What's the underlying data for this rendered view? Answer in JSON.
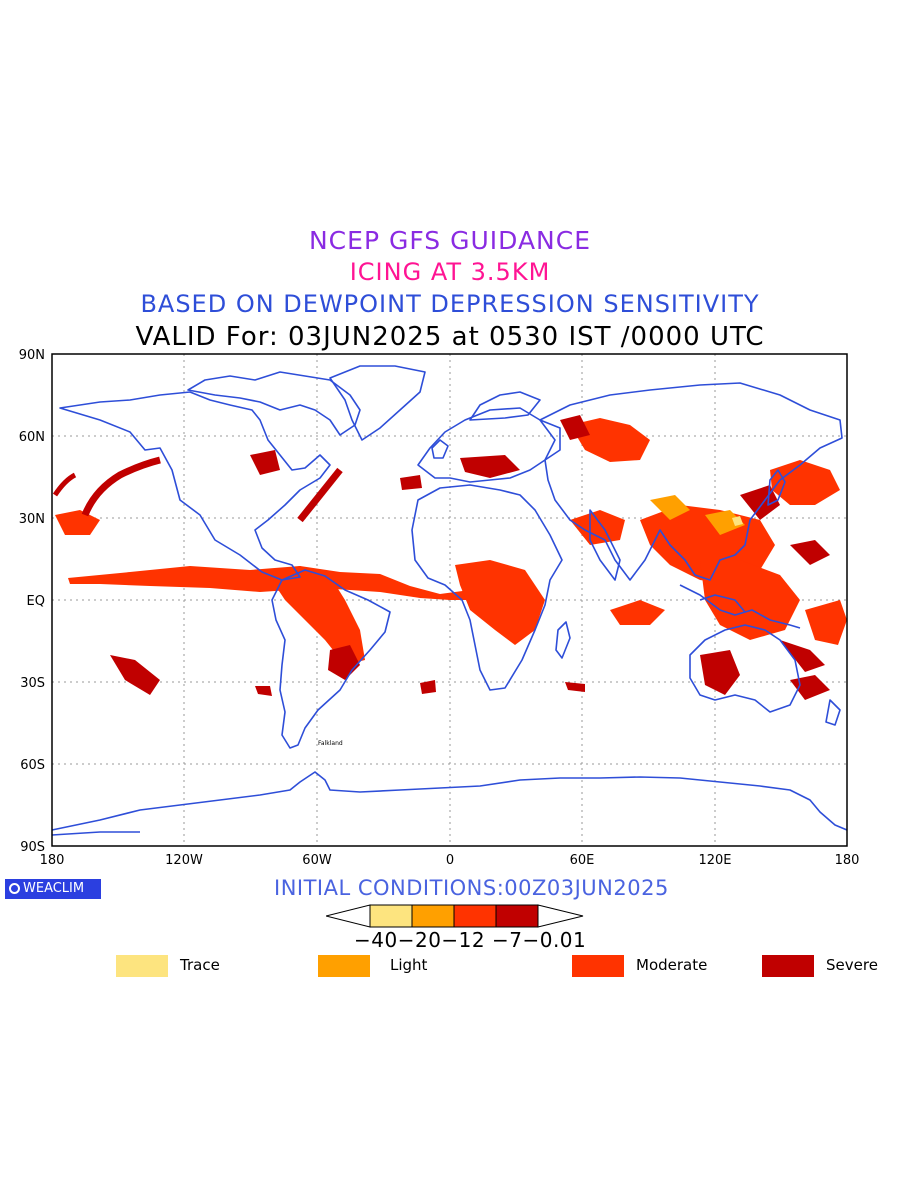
{
  "titles": {
    "line1": "NCEP GFS GUIDANCE",
    "line2": "ICING AT 3.5KM",
    "line3": "BASED ON DEWPOINT DEPRESSION SENSITIVITY",
    "line4": "VALID For: 03JUN2025 at 0530 IST /0000 UTC"
  },
  "axes": {
    "y_ticks": [
      "90N",
      "60N",
      "30N",
      "EQ",
      "30S",
      "60S",
      "90S"
    ],
    "x_ticks": [
      "180",
      "120W",
      "60W",
      "0",
      "60E",
      "120E",
      "180"
    ]
  },
  "map_labels": {
    "falkland": "Falkland"
  },
  "brand": {
    "label": "WEACLIM"
  },
  "initial_conditions": "INITIAL CONDITIONS:00Z03JUN2025",
  "colorbar": {
    "thresholds": "−40−20−12 −7−0.01",
    "colors": [
      "#fde47f",
      "#ffa000",
      "#ff3300",
      "#c00000"
    ]
  },
  "legend": [
    {
      "label": "Trace",
      "color": "#fde47f"
    },
    {
      "label": "Light",
      "color": "#ffa000"
    },
    {
      "label": "Moderate",
      "color": "#ff3300"
    },
    {
      "label": "Severe",
      "color": "#c00000"
    }
  ],
  "colors": {
    "coast": "#2e4ed8",
    "grid": "#999999"
  }
}
